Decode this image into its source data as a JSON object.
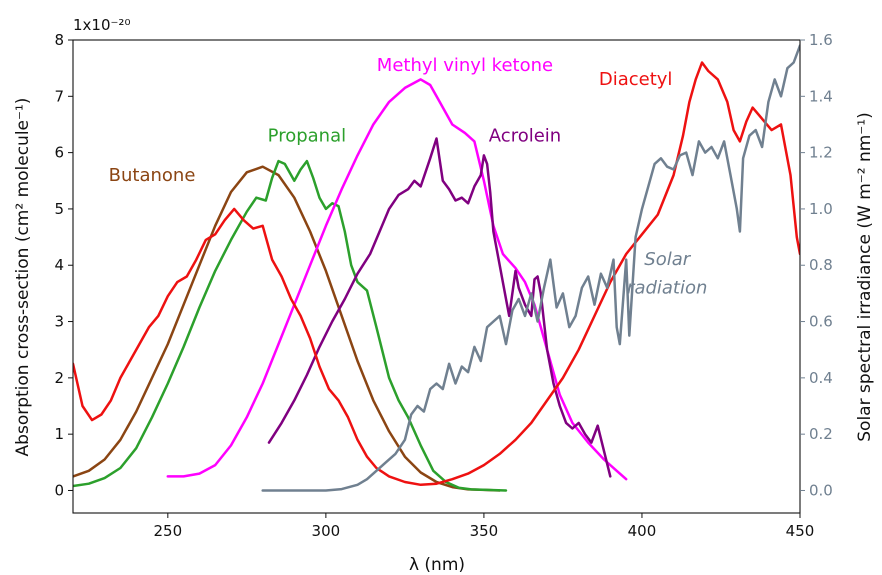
{
  "chart_data": {
    "type": "line",
    "title": "",
    "xlabel": "λ (nm)",
    "ylabel_left": "Absorption cross-section  (cm² molecule⁻¹)",
    "ylabel_right": "Solar spectral irradiance  (W m⁻² nm⁻¹)",
    "y_multiplier": "1x10⁻²⁰",
    "xlim": [
      220,
      450
    ],
    "ylim_left": [
      -0.4,
      8
    ],
    "ylim_right": [
      -0.08,
      1.6
    ],
    "x_ticks": [
      250,
      300,
      350,
      400,
      450
    ],
    "y_ticks_left": [
      0,
      1,
      2,
      3,
      4,
      5,
      6,
      7,
      8
    ],
    "y_ticks_right": [
      "0.0",
      "0.2",
      "0.4",
      "0.6",
      "0.8",
      "1.0",
      "1.2",
      "1.4",
      "1.6"
    ],
    "series": [
      {
        "name": "Butanone",
        "axis": "left",
        "color": "#8b4513",
        "points": [
          [
            220,
            0.25
          ],
          [
            225,
            0.35
          ],
          [
            230,
            0.55
          ],
          [
            235,
            0.9
          ],
          [
            240,
            1.4
          ],
          [
            245,
            2.0
          ],
          [
            250,
            2.6
          ],
          [
            255,
            3.3
          ],
          [
            260,
            4.0
          ],
          [
            265,
            4.7
          ],
          [
            270,
            5.3
          ],
          [
            275,
            5.65
          ],
          [
            280,
            5.75
          ],
          [
            285,
            5.6
          ],
          [
            290,
            5.2
          ],
          [
            295,
            4.6
          ],
          [
            300,
            3.9
          ],
          [
            305,
            3.1
          ],
          [
            310,
            2.3
          ],
          [
            315,
            1.6
          ],
          [
            320,
            1.05
          ],
          [
            325,
            0.6
          ],
          [
            330,
            0.32
          ],
          [
            335,
            0.15
          ],
          [
            340,
            0.06
          ],
          [
            345,
            0.02
          ],
          [
            350,
            0.01
          ],
          [
            355,
            0.0
          ]
        ]
      },
      {
        "name": "Propanal",
        "axis": "left",
        "color": "#2ca02c",
        "points": [
          [
            220,
            0.08
          ],
          [
            225,
            0.12
          ],
          [
            230,
            0.22
          ],
          [
            235,
            0.4
          ],
          [
            240,
            0.75
          ],
          [
            245,
            1.3
          ],
          [
            250,
            1.9
          ],
          [
            255,
            2.55
          ],
          [
            260,
            3.25
          ],
          [
            265,
            3.9
          ],
          [
            270,
            4.45
          ],
          [
            275,
            4.95
          ],
          [
            278,
            5.2
          ],
          [
            281,
            5.15
          ],
          [
            283,
            5.55
          ],
          [
            285,
            5.85
          ],
          [
            287,
            5.8
          ],
          [
            290,
            5.5
          ],
          [
            292,
            5.7
          ],
          [
            294,
            5.85
          ],
          [
            296,
            5.55
          ],
          [
            298,
            5.2
          ],
          [
            300,
            5.0
          ],
          [
            302,
            5.1
          ],
          [
            304,
            5.05
          ],
          [
            306,
            4.6
          ],
          [
            308,
            4.0
          ],
          [
            310,
            3.7
          ],
          [
            313,
            3.55
          ],
          [
            316,
            2.9
          ],
          [
            320,
            2.0
          ],
          [
            323,
            1.6
          ],
          [
            326,
            1.3
          ],
          [
            330,
            0.8
          ],
          [
            334,
            0.35
          ],
          [
            338,
            0.15
          ],
          [
            342,
            0.05
          ],
          [
            346,
            0.02
          ],
          [
            357,
            0.0
          ]
        ]
      },
      {
        "name": "Methyl vinyl ketone",
        "axis": "left",
        "color": "#ff00ff",
        "points": [
          [
            250,
            0.25
          ],
          [
            255,
            0.25
          ],
          [
            260,
            0.3
          ],
          [
            265,
            0.45
          ],
          [
            270,
            0.8
          ],
          [
            275,
            1.3
          ],
          [
            280,
            1.9
          ],
          [
            285,
            2.6
          ],
          [
            290,
            3.3
          ],
          [
            295,
            4.0
          ],
          [
            300,
            4.7
          ],
          [
            305,
            5.35
          ],
          [
            310,
            5.95
          ],
          [
            315,
            6.5
          ],
          [
            320,
            6.9
          ],
          [
            325,
            7.15
          ],
          [
            330,
            7.3
          ],
          [
            333,
            7.2
          ],
          [
            336,
            6.9
          ],
          [
            340,
            6.5
          ],
          [
            344,
            6.35
          ],
          [
            347,
            6.2
          ],
          [
            350,
            5.5
          ],
          [
            353,
            4.7
          ],
          [
            356,
            4.2
          ],
          [
            360,
            3.95
          ],
          [
            363,
            3.7
          ],
          [
            366,
            3.3
          ],
          [
            370,
            2.5
          ],
          [
            374,
            1.7
          ],
          [
            378,
            1.2
          ],
          [
            383,
            0.85
          ],
          [
            388,
            0.55
          ],
          [
            392,
            0.35
          ],
          [
            395,
            0.2
          ]
        ]
      },
      {
        "name": "Acrolein",
        "axis": "left",
        "color": "#800080",
        "points": [
          [
            282,
            0.85
          ],
          [
            286,
            1.2
          ],
          [
            290,
            1.6
          ],
          [
            294,
            2.05
          ],
          [
            298,
            2.55
          ],
          [
            302,
            3.0
          ],
          [
            306,
            3.4
          ],
          [
            310,
            3.85
          ],
          [
            314,
            4.2
          ],
          [
            317,
            4.6
          ],
          [
            320,
            5.0
          ],
          [
            323,
            5.25
          ],
          [
            326,
            5.35
          ],
          [
            328,
            5.5
          ],
          [
            330,
            5.4
          ],
          [
            333,
            5.9
          ],
          [
            335,
            6.25
          ],
          [
            337,
            5.5
          ],
          [
            339,
            5.35
          ],
          [
            341,
            5.15
          ],
          [
            343,
            5.2
          ],
          [
            345,
            5.1
          ],
          [
            347,
            5.4
          ],
          [
            349,
            5.6
          ],
          [
            350,
            5.95
          ],
          [
            351,
            5.8
          ],
          [
            352,
            5.3
          ],
          [
            353,
            4.6
          ],
          [
            355,
            4.0
          ],
          [
            357,
            3.4
          ],
          [
            358,
            3.1
          ],
          [
            360,
            3.9
          ],
          [
            361,
            3.6
          ],
          [
            363,
            3.3
          ],
          [
            365,
            3.1
          ],
          [
            366,
            3.75
          ],
          [
            367,
            3.8
          ],
          [
            368,
            3.5
          ],
          [
            370,
            2.5
          ],
          [
            372,
            1.9
          ],
          [
            374,
            1.5
          ],
          [
            376,
            1.2
          ],
          [
            378,
            1.1
          ],
          [
            380,
            1.2
          ],
          [
            382,
            1.0
          ],
          [
            384,
            0.85
          ],
          [
            386,
            1.15
          ],
          [
            388,
            0.7
          ],
          [
            390,
            0.25
          ]
        ]
      },
      {
        "name": "Diacetyl",
        "axis": "left",
        "color": "#ee1111",
        "points": [
          [
            220,
            2.25
          ],
          [
            223,
            1.5
          ],
          [
            226,
            1.25
          ],
          [
            229,
            1.35
          ],
          [
            232,
            1.6
          ],
          [
            235,
            2.0
          ],
          [
            238,
            2.3
          ],
          [
            241,
            2.6
          ],
          [
            244,
            2.9
          ],
          [
            247,
            3.1
          ],
          [
            250,
            3.45
          ],
          [
            253,
            3.7
          ],
          [
            256,
            3.8
          ],
          [
            259,
            4.1
          ],
          [
            262,
            4.45
          ],
          [
            265,
            4.55
          ],
          [
            268,
            4.8
          ],
          [
            271,
            5.0
          ],
          [
            274,
            4.8
          ],
          [
            277,
            4.65
          ],
          [
            280,
            4.7
          ],
          [
            283,
            4.1
          ],
          [
            286,
            3.8
          ],
          [
            289,
            3.4
          ],
          [
            292,
            3.1
          ],
          [
            295,
            2.7
          ],
          [
            298,
            2.2
          ],
          [
            301,
            1.8
          ],
          [
            304,
            1.6
          ],
          [
            307,
            1.3
          ],
          [
            310,
            0.9
          ],
          [
            313,
            0.6
          ],
          [
            316,
            0.4
          ],
          [
            320,
            0.25
          ],
          [
            325,
            0.15
          ],
          [
            330,
            0.1
          ],
          [
            335,
            0.12
          ],
          [
            340,
            0.2
          ],
          [
            345,
            0.3
          ],
          [
            350,
            0.45
          ],
          [
            355,
            0.65
          ],
          [
            360,
            0.9
          ],
          [
            365,
            1.2
          ],
          [
            370,
            1.6
          ],
          [
            375,
            2.0
          ],
          [
            380,
            2.5
          ],
          [
            385,
            3.1
          ],
          [
            390,
            3.7
          ],
          [
            395,
            4.2
          ],
          [
            400,
            4.55
          ],
          [
            405,
            4.9
          ],
          [
            410,
            5.6
          ],
          [
            413,
            6.3
          ],
          [
            415,
            6.9
          ],
          [
            417,
            7.3
          ],
          [
            419,
            7.6
          ],
          [
            421,
            7.45
          ],
          [
            424,
            7.3
          ],
          [
            427,
            6.9
          ],
          [
            429,
            6.4
          ],
          [
            431,
            6.2
          ],
          [
            433,
            6.55
          ],
          [
            435,
            6.8
          ],
          [
            438,
            6.6
          ],
          [
            441,
            6.4
          ],
          [
            444,
            6.5
          ],
          [
            447,
            5.6
          ],
          [
            449,
            4.5
          ],
          [
            450,
            4.2
          ]
        ]
      },
      {
        "name": "Solar radiation",
        "axis": "right",
        "color": "#708090",
        "points": [
          [
            280,
            0.0
          ],
          [
            290,
            0.0
          ],
          [
            300,
            0.0
          ],
          [
            305,
            0.005
          ],
          [
            310,
            0.02
          ],
          [
            313,
            0.04
          ],
          [
            316,
            0.07
          ],
          [
            319,
            0.1
          ],
          [
            322,
            0.13
          ],
          [
            325,
            0.18
          ],
          [
            327,
            0.27
          ],
          [
            329,
            0.3
          ],
          [
            331,
            0.28
          ],
          [
            333,
            0.36
          ],
          [
            335,
            0.38
          ],
          [
            337,
            0.36
          ],
          [
            339,
            0.45
          ],
          [
            341,
            0.38
          ],
          [
            343,
            0.44
          ],
          [
            345,
            0.42
          ],
          [
            347,
            0.51
          ],
          [
            349,
            0.46
          ],
          [
            351,
            0.58
          ],
          [
            353,
            0.6
          ],
          [
            355,
            0.62
          ],
          [
            357,
            0.52
          ],
          [
            359,
            0.64
          ],
          [
            361,
            0.68
          ],
          [
            363,
            0.62
          ],
          [
            365,
            0.7
          ],
          [
            367,
            0.6
          ],
          [
            369,
            0.72
          ],
          [
            371,
            0.82
          ],
          [
            373,
            0.65
          ],
          [
            375,
            0.7
          ],
          [
            377,
            0.58
          ],
          [
            379,
            0.62
          ],
          [
            381,
            0.72
          ],
          [
            383,
            0.76
          ],
          [
            385,
            0.66
          ],
          [
            387,
            0.77
          ],
          [
            389,
            0.72
          ],
          [
            391,
            0.82
          ],
          [
            392,
            0.58
          ],
          [
            393,
            0.52
          ],
          [
            395,
            0.82
          ],
          [
            396,
            0.55
          ],
          [
            398,
            0.9
          ],
          [
            400,
            1.0
          ],
          [
            402,
            1.08
          ],
          [
            404,
            1.16
          ],
          [
            406,
            1.18
          ],
          [
            408,
            1.15
          ],
          [
            410,
            1.14
          ],
          [
            412,
            1.19
          ],
          [
            414,
            1.2
          ],
          [
            416,
            1.12
          ],
          [
            418,
            1.24
          ],
          [
            420,
            1.2
          ],
          [
            422,
            1.22
          ],
          [
            424,
            1.18
          ],
          [
            426,
            1.24
          ],
          [
            428,
            1.12
          ],
          [
            430,
            1.0
          ],
          [
            431,
            0.92
          ],
          [
            432,
            1.18
          ],
          [
            434,
            1.26
          ],
          [
            436,
            1.28
          ],
          [
            438,
            1.22
          ],
          [
            440,
            1.38
          ],
          [
            442,
            1.46
          ],
          [
            444,
            1.4
          ],
          [
            446,
            1.5
          ],
          [
            448,
            1.52
          ],
          [
            450,
            1.58
          ]
        ]
      }
    ],
    "annotations": [
      {
        "text": "Butanone",
        "color": "#8b4513",
        "x": 245,
        "y": 5.5
      },
      {
        "text": "Propanal",
        "color": "#2ca02c",
        "x": 294,
        "y": 6.2
      },
      {
        "text": "Methyl vinyl ketone",
        "color": "#ff00ff",
        "x": 344,
        "y": 7.45
      },
      {
        "text": "Acrolein",
        "color": "#800080",
        "x": 363,
        "y": 6.2
      },
      {
        "text": "Diacetyl",
        "color": "#ee1111",
        "x": 398,
        "y": 7.2
      },
      {
        "text": "Solar",
        "color": "#708090",
        "x": 408,
        "y": 0.8
      },
      {
        "text": "radiation",
        "color": "#708090",
        "x": 408,
        "y": 0.7
      }
    ],
    "grid": false,
    "legend": "none"
  }
}
